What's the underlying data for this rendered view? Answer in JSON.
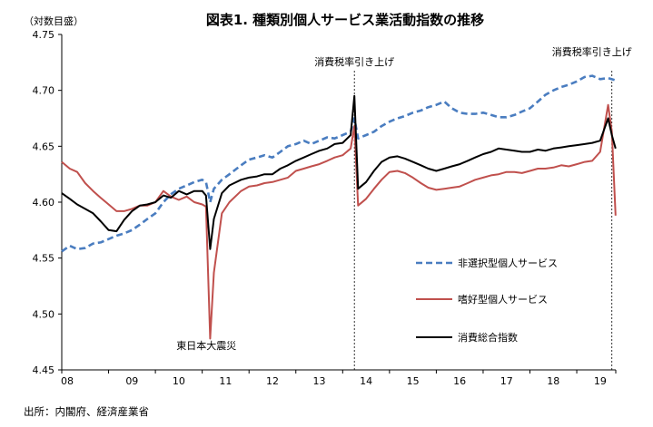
{
  "chart_data": {
    "type": "line",
    "title": "図表1. 種類別個人サービス業活動指数の推移",
    "ylabel": "（対数目盛）",
    "source": "出所：内閣府、経済産業省",
    "ylim": [
      4.45,
      4.75
    ],
    "yticks": [
      "4.45",
      "4.50",
      "4.55",
      "4.60",
      "4.65",
      "4.70",
      "4.75"
    ],
    "yticks_values": [
      4.45,
      4.5,
      4.55,
      4.6,
      4.65,
      4.7,
      4.75
    ],
    "xlim": [
      2008.0,
      2019.833
    ],
    "xticks": [
      "08",
      "09",
      "10",
      "11",
      "12",
      "13",
      "14",
      "15",
      "16",
      "17",
      "18",
      "19"
    ],
    "xticks_values": [
      2008,
      2009,
      2010,
      2011,
      2012,
      2013,
      2014,
      2015,
      2016,
      2017,
      2018,
      2019
    ],
    "grid": false,
    "legend_position": "right-center",
    "annotations": [
      {
        "text": "消費税率引き上げ",
        "x": 2014.25
      },
      {
        "text": "消費税率引き上げ",
        "x": 2019.75
      },
      {
        "text": "東日本大震災",
        "x": 2011.167,
        "y": 4.48
      }
    ],
    "vlines": [
      2014.25,
      2019.75
    ],
    "series": [
      {
        "name": "非選択型個人サービス",
        "color": "#4A7DC0",
        "style": "dashed",
        "points": [
          [
            2008.0,
            4.556
          ],
          [
            2008.17,
            4.561
          ],
          [
            2008.33,
            4.558
          ],
          [
            2008.5,
            4.559
          ],
          [
            2008.67,
            4.563
          ],
          [
            2008.83,
            4.564
          ],
          [
            2009.0,
            4.567
          ],
          [
            2009.17,
            4.57
          ],
          [
            2009.33,
            4.572
          ],
          [
            2009.5,
            4.575
          ],
          [
            2009.67,
            4.58
          ],
          [
            2009.83,
            4.585
          ],
          [
            2010.0,
            4.59
          ],
          [
            2010.17,
            4.6
          ],
          [
            2010.33,
            4.607
          ],
          [
            2010.5,
            4.612
          ],
          [
            2010.67,
            4.615
          ],
          [
            2010.83,
            4.618
          ],
          [
            2011.0,
            4.62
          ],
          [
            2011.08,
            4.618
          ],
          [
            2011.17,
            4.6
          ],
          [
            2011.25,
            4.612
          ],
          [
            2011.42,
            4.62
          ],
          [
            2011.58,
            4.625
          ],
          [
            2011.83,
            4.633
          ],
          [
            2012.0,
            4.638
          ],
          [
            2012.17,
            4.64
          ],
          [
            2012.33,
            4.642
          ],
          [
            2012.5,
            4.64
          ],
          [
            2012.67,
            4.645
          ],
          [
            2012.83,
            4.65
          ],
          [
            2013.0,
            4.652
          ],
          [
            2013.17,
            4.655
          ],
          [
            2013.33,
            4.652
          ],
          [
            2013.5,
            4.655
          ],
          [
            2013.67,
            4.658
          ],
          [
            2013.83,
            4.657
          ],
          [
            2014.0,
            4.66
          ],
          [
            2014.17,
            4.663
          ],
          [
            2014.25,
            4.675
          ],
          [
            2014.33,
            4.657
          ],
          [
            2014.5,
            4.66
          ],
          [
            2014.67,
            4.663
          ],
          [
            2014.83,
            4.668
          ],
          [
            2015.0,
            4.672
          ],
          [
            2015.17,
            4.675
          ],
          [
            2015.33,
            4.677
          ],
          [
            2015.5,
            4.68
          ],
          [
            2015.67,
            4.682
          ],
          [
            2015.83,
            4.685
          ],
          [
            2016.0,
            4.687
          ],
          [
            2016.17,
            4.69
          ],
          [
            2016.33,
            4.684
          ],
          [
            2016.5,
            4.68
          ],
          [
            2016.67,
            4.679
          ],
          [
            2016.83,
            4.679
          ],
          [
            2017.0,
            4.68
          ],
          [
            2017.17,
            4.678
          ],
          [
            2017.33,
            4.676
          ],
          [
            2017.5,
            4.676
          ],
          [
            2017.67,
            4.678
          ],
          [
            2017.83,
            4.681
          ],
          [
            2018.0,
            4.684
          ],
          [
            2018.17,
            4.69
          ],
          [
            2018.33,
            4.696
          ],
          [
            2018.5,
            4.7
          ],
          [
            2018.67,
            4.703
          ],
          [
            2018.83,
            4.705
          ],
          [
            2019.0,
            4.708
          ],
          [
            2019.17,
            4.712
          ],
          [
            2019.33,
            4.713
          ],
          [
            2019.5,
            4.71
          ],
          [
            2019.67,
            4.711
          ],
          [
            2019.83,
            4.709
          ]
        ]
      },
      {
        "name": "嗜好型個人サービス",
        "color": "#C0504D",
        "style": "solid",
        "points": [
          [
            2008.0,
            4.636
          ],
          [
            2008.17,
            4.63
          ],
          [
            2008.33,
            4.627
          ],
          [
            2008.5,
            4.617
          ],
          [
            2008.67,
            4.61
          ],
          [
            2008.83,
            4.604
          ],
          [
            2009.0,
            4.598
          ],
          [
            2009.17,
            4.592
          ],
          [
            2009.33,
            4.592
          ],
          [
            2009.5,
            4.594
          ],
          [
            2009.67,
            4.597
          ],
          [
            2009.83,
            4.597
          ],
          [
            2010.0,
            4.6
          ],
          [
            2010.17,
            4.61
          ],
          [
            2010.33,
            4.605
          ],
          [
            2010.5,
            4.602
          ],
          [
            2010.67,
            4.605
          ],
          [
            2010.83,
            4.6
          ],
          [
            2011.0,
            4.598
          ],
          [
            2011.08,
            4.596
          ],
          [
            2011.17,
            4.478
          ],
          [
            2011.25,
            4.537
          ],
          [
            2011.42,
            4.59
          ],
          [
            2011.58,
            4.6
          ],
          [
            2011.83,
            4.61
          ],
          [
            2012.0,
            4.614
          ],
          [
            2012.17,
            4.615
          ],
          [
            2012.33,
            4.617
          ],
          [
            2012.5,
            4.618
          ],
          [
            2012.67,
            4.62
          ],
          [
            2012.83,
            4.622
          ],
          [
            2013.0,
            4.628
          ],
          [
            2013.17,
            4.63
          ],
          [
            2013.33,
            4.632
          ],
          [
            2013.5,
            4.634
          ],
          [
            2013.67,
            4.637
          ],
          [
            2013.83,
            4.64
          ],
          [
            2014.0,
            4.642
          ],
          [
            2014.17,
            4.648
          ],
          [
            2014.25,
            4.668
          ],
          [
            2014.33,
            4.597
          ],
          [
            2014.5,
            4.603
          ],
          [
            2014.67,
            4.612
          ],
          [
            2014.83,
            4.62
          ],
          [
            2015.0,
            4.627
          ],
          [
            2015.17,
            4.628
          ],
          [
            2015.33,
            4.626
          ],
          [
            2015.5,
            4.622
          ],
          [
            2015.67,
            4.617
          ],
          [
            2015.83,
            4.613
          ],
          [
            2016.0,
            4.611
          ],
          [
            2016.17,
            4.612
          ],
          [
            2016.33,
            4.613
          ],
          [
            2016.5,
            4.614
          ],
          [
            2016.67,
            4.617
          ],
          [
            2016.83,
            4.62
          ],
          [
            2017.0,
            4.622
          ],
          [
            2017.17,
            4.624
          ],
          [
            2017.33,
            4.625
          ],
          [
            2017.5,
            4.627
          ],
          [
            2017.67,
            4.627
          ],
          [
            2017.83,
            4.626
          ],
          [
            2018.0,
            4.628
          ],
          [
            2018.17,
            4.63
          ],
          [
            2018.33,
            4.63
          ],
          [
            2018.5,
            4.631
          ],
          [
            2018.67,
            4.633
          ],
          [
            2018.83,
            4.632
          ],
          [
            2019.0,
            4.634
          ],
          [
            2019.17,
            4.636
          ],
          [
            2019.33,
            4.637
          ],
          [
            2019.5,
            4.645
          ],
          [
            2019.67,
            4.687
          ],
          [
            2019.75,
            4.663
          ],
          [
            2019.83,
            4.588
          ]
        ]
      },
      {
        "name": "消費総合指数",
        "color": "#000000",
        "style": "solid",
        "points": [
          [
            2008.0,
            4.608
          ],
          [
            2008.17,
            4.603
          ],
          [
            2008.33,
            4.598
          ],
          [
            2008.5,
            4.594
          ],
          [
            2008.67,
            4.59
          ],
          [
            2008.83,
            4.583
          ],
          [
            2009.0,
            4.575
          ],
          [
            2009.17,
            4.574
          ],
          [
            2009.33,
            4.584
          ],
          [
            2009.5,
            4.592
          ],
          [
            2009.67,
            4.597
          ],
          [
            2009.83,
            4.598
          ],
          [
            2010.0,
            4.6
          ],
          [
            2010.17,
            4.606
          ],
          [
            2010.33,
            4.604
          ],
          [
            2010.5,
            4.61
          ],
          [
            2010.67,
            4.607
          ],
          [
            2010.83,
            4.61
          ],
          [
            2011.0,
            4.61
          ],
          [
            2011.08,
            4.606
          ],
          [
            2011.17,
            4.558
          ],
          [
            2011.25,
            4.585
          ],
          [
            2011.42,
            4.608
          ],
          [
            2011.58,
            4.615
          ],
          [
            2011.83,
            4.62
          ],
          [
            2012.0,
            4.622
          ],
          [
            2012.17,
            4.623
          ],
          [
            2012.33,
            4.625
          ],
          [
            2012.5,
            4.625
          ],
          [
            2012.67,
            4.63
          ],
          [
            2012.83,
            4.633
          ],
          [
            2013.0,
            4.637
          ],
          [
            2013.17,
            4.64
          ],
          [
            2013.33,
            4.643
          ],
          [
            2013.5,
            4.646
          ],
          [
            2013.67,
            4.648
          ],
          [
            2013.83,
            4.652
          ],
          [
            2014.0,
            4.653
          ],
          [
            2014.17,
            4.66
          ],
          [
            2014.25,
            4.695
          ],
          [
            2014.33,
            4.612
          ],
          [
            2014.5,
            4.618
          ],
          [
            2014.67,
            4.628
          ],
          [
            2014.83,
            4.636
          ],
          [
            2015.0,
            4.64
          ],
          [
            2015.17,
            4.641
          ],
          [
            2015.33,
            4.639
          ],
          [
            2015.5,
            4.636
          ],
          [
            2015.67,
            4.633
          ],
          [
            2015.83,
            4.63
          ],
          [
            2016.0,
            4.628
          ],
          [
            2016.17,
            4.63
          ],
          [
            2016.33,
            4.632
          ],
          [
            2016.5,
            4.634
          ],
          [
            2016.67,
            4.637
          ],
          [
            2016.83,
            4.64
          ],
          [
            2017.0,
            4.643
          ],
          [
            2017.17,
            4.645
          ],
          [
            2017.33,
            4.648
          ],
          [
            2017.5,
            4.647
          ],
          [
            2017.67,
            4.646
          ],
          [
            2017.83,
            4.645
          ],
          [
            2018.0,
            4.645
          ],
          [
            2018.17,
            4.647
          ],
          [
            2018.33,
            4.646
          ],
          [
            2018.5,
            4.648
          ],
          [
            2018.67,
            4.649
          ],
          [
            2018.83,
            4.65
          ],
          [
            2019.0,
            4.651
          ],
          [
            2019.17,
            4.652
          ],
          [
            2019.33,
            4.653
          ],
          [
            2019.5,
            4.655
          ],
          [
            2019.67,
            4.675
          ],
          [
            2019.75,
            4.66
          ],
          [
            2019.83,
            4.648
          ]
        ]
      }
    ]
  }
}
